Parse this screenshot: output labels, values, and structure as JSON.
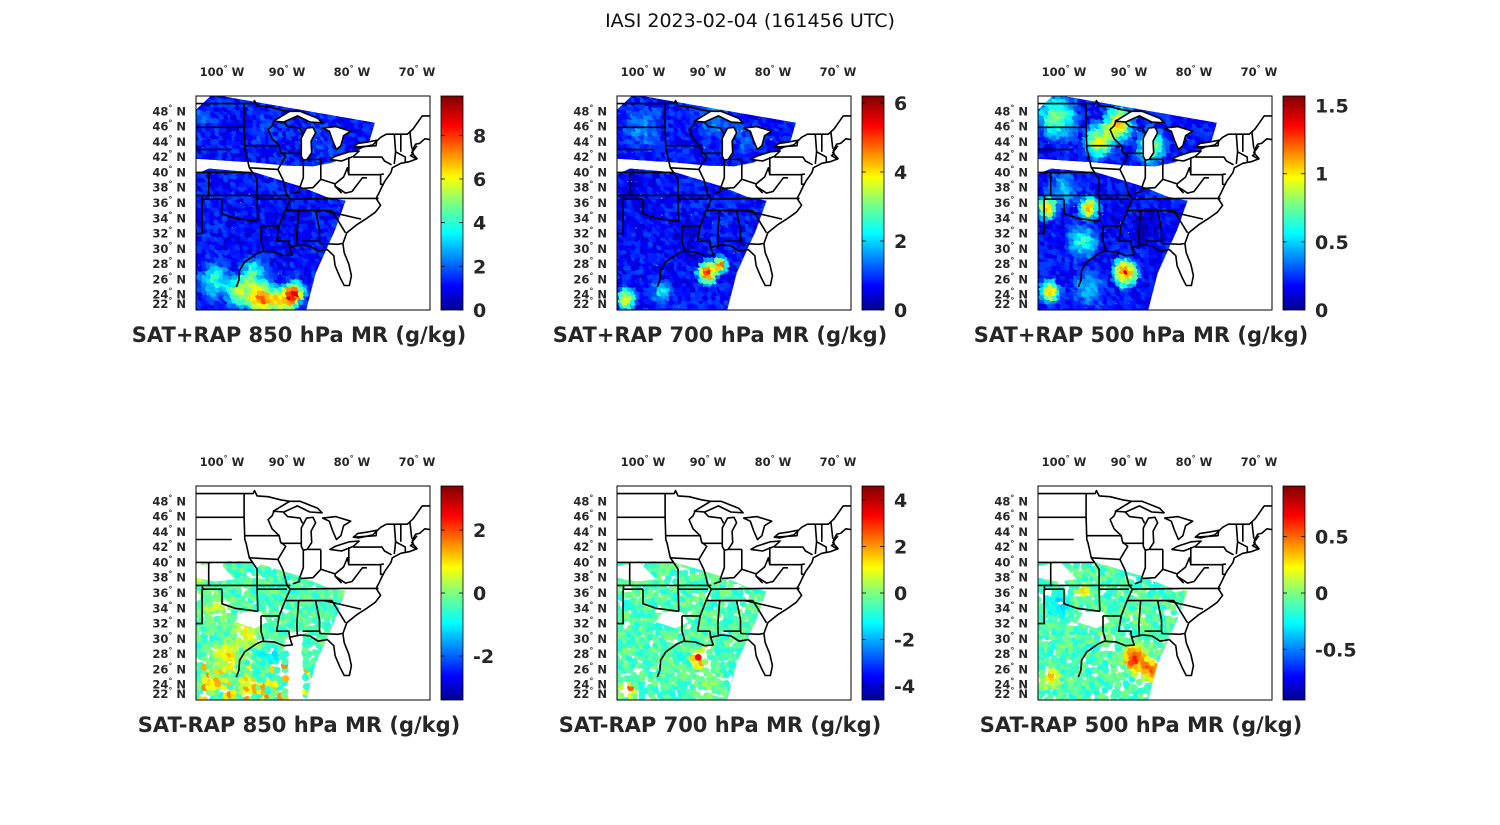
{
  "figure": {
    "title": "IASI 2023-02-04 (161456 UTC)"
  },
  "colors": {
    "background": "#ffffff",
    "map_lines": "#000000",
    "colormap": "jet"
  },
  "chart_data": [
    {
      "type": "heatmap",
      "title": "SAT+RAP 850 hPa MR (g/kg)",
      "lon_ticks": [
        "100",
        "90",
        "80",
        "70"
      ],
      "lon_suffix": "W",
      "lat_ticks": [
        "48",
        "46",
        "44",
        "42",
        "40",
        "38",
        "36",
        "34",
        "32",
        "30",
        "28",
        "26",
        "24",
        "22"
      ],
      "lat_suffix": "N",
      "colorbar": {
        "min": 0,
        "max": 9.8,
        "ticks": [
          "0",
          "2",
          "4",
          "6",
          "8"
        ],
        "tick_values": [
          0,
          2,
          4,
          6,
          8
        ]
      }
    },
    {
      "type": "heatmap",
      "title": "SAT+RAP 700 hPa MR (g/kg)",
      "lon_ticks": [
        "100",
        "90",
        "80",
        "70"
      ],
      "lon_suffix": "W",
      "lat_ticks": [
        "48",
        "46",
        "44",
        "42",
        "40",
        "38",
        "36",
        "34",
        "32",
        "30",
        "28",
        "26",
        "24",
        "22"
      ],
      "lat_suffix": "N",
      "colorbar": {
        "min": 0,
        "max": 6.2,
        "ticks": [
          "0",
          "2",
          "4",
          "6"
        ],
        "tick_values": [
          0,
          2,
          4,
          6
        ]
      }
    },
    {
      "type": "heatmap",
      "title": "SAT+RAP 500 hPa MR (g/kg)",
      "lon_ticks": [
        "100",
        "90",
        "80",
        "70"
      ],
      "lon_suffix": "W",
      "lat_ticks": [
        "48",
        "46",
        "44",
        "42",
        "40",
        "38",
        "36",
        "34",
        "32",
        "30",
        "28",
        "26",
        "24",
        "22"
      ],
      "lat_suffix": "N",
      "colorbar": {
        "min": 0,
        "max": 1.57,
        "ticks": [
          "0",
          "0.5",
          "1",
          "1.5"
        ],
        "tick_values": [
          0,
          0.5,
          1,
          1.5
        ]
      }
    },
    {
      "type": "heatmap",
      "title": "SAT-RAP 850 hPa MR (g/kg)",
      "lon_ticks": [
        "100",
        "90",
        "80",
        "70"
      ],
      "lon_suffix": "W",
      "lat_ticks": [
        "48",
        "46",
        "44",
        "42",
        "40",
        "38",
        "36",
        "34",
        "32",
        "30",
        "28",
        "26",
        "24",
        "22"
      ],
      "lat_suffix": "N",
      "colorbar": {
        "min": -3.4,
        "max": 3.4,
        "ticks": [
          "2",
          "0",
          "-2"
        ],
        "tick_values": [
          2,
          0,
          -2
        ]
      }
    },
    {
      "type": "heatmap",
      "title": "SAT-RAP 700 hPa MR (g/kg)",
      "lon_ticks": [
        "100",
        "90",
        "80",
        "70"
      ],
      "lon_suffix": "W",
      "lat_ticks": [
        "48",
        "46",
        "44",
        "42",
        "40",
        "38",
        "36",
        "34",
        "32",
        "30",
        "28",
        "26",
        "24",
        "22"
      ],
      "lat_suffix": "N",
      "colorbar": {
        "min": -4.6,
        "max": 4.6,
        "ticks": [
          "4",
          "2",
          "0",
          "-2",
          "-4"
        ],
        "tick_values": [
          4,
          2,
          0,
          -2,
          -4
        ]
      }
    },
    {
      "type": "heatmap",
      "title": "SAT-RAP 500 hPa MR (g/kg)",
      "lon_ticks": [
        "100",
        "90",
        "80",
        "70"
      ],
      "lon_suffix": "W",
      "lat_ticks": [
        "48",
        "46",
        "44",
        "42",
        "40",
        "38",
        "36",
        "34",
        "32",
        "30",
        "28",
        "26",
        "24",
        "22"
      ],
      "lat_suffix": "N",
      "colorbar": {
        "min": -0.95,
        "max": 0.95,
        "ticks": [
          "0.5",
          "0",
          "-0.5"
        ],
        "tick_values": [
          0.5,
          0,
          -0.5
        ]
      }
    }
  ]
}
